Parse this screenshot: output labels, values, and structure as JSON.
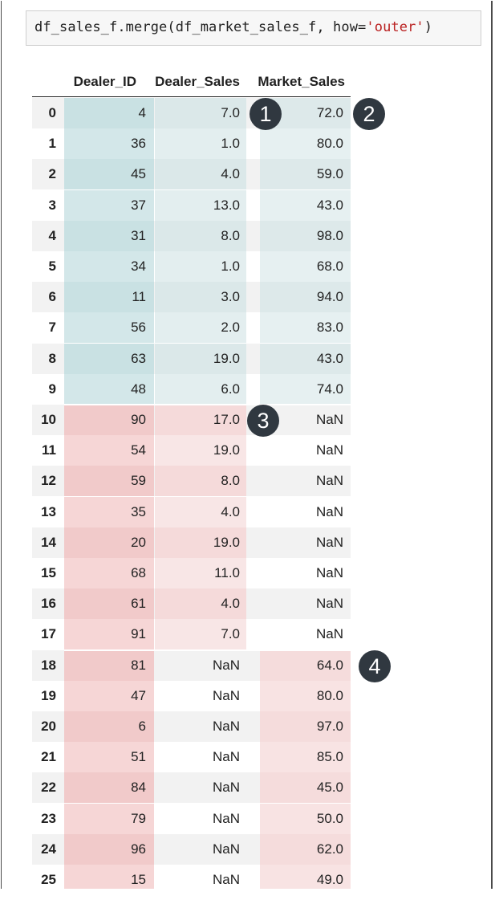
{
  "code": {
    "prefix": "df_sales_f.merge(df_market_sales_f, how=",
    "string": "'outer'",
    "suffix": ")"
  },
  "columns": [
    "Dealer_ID",
    "Dealer_Sales",
    "Market_Sales"
  ],
  "rows": [
    {
      "index": "0",
      "Dealer_ID": "4",
      "Dealer_Sales": "7.0",
      "Market_Sales": "72.0"
    },
    {
      "index": "1",
      "Dealer_ID": "36",
      "Dealer_Sales": "1.0",
      "Market_Sales": "80.0"
    },
    {
      "index": "2",
      "Dealer_ID": "45",
      "Dealer_Sales": "4.0",
      "Market_Sales": "59.0"
    },
    {
      "index": "3",
      "Dealer_ID": "37",
      "Dealer_Sales": "13.0",
      "Market_Sales": "43.0"
    },
    {
      "index": "4",
      "Dealer_ID": "31",
      "Dealer_Sales": "8.0",
      "Market_Sales": "98.0"
    },
    {
      "index": "5",
      "Dealer_ID": "34",
      "Dealer_Sales": "1.0",
      "Market_Sales": "68.0"
    },
    {
      "index": "6",
      "Dealer_ID": "11",
      "Dealer_Sales": "3.0",
      "Market_Sales": "94.0"
    },
    {
      "index": "7",
      "Dealer_ID": "56",
      "Dealer_Sales": "2.0",
      "Market_Sales": "83.0"
    },
    {
      "index": "8",
      "Dealer_ID": "63",
      "Dealer_Sales": "19.0",
      "Market_Sales": "43.0"
    },
    {
      "index": "9",
      "Dealer_ID": "48",
      "Dealer_Sales": "6.0",
      "Market_Sales": "74.0"
    },
    {
      "index": "10",
      "Dealer_ID": "90",
      "Dealer_Sales": "17.0",
      "Market_Sales": "NaN"
    },
    {
      "index": "11",
      "Dealer_ID": "54",
      "Dealer_Sales": "19.0",
      "Market_Sales": "NaN"
    },
    {
      "index": "12",
      "Dealer_ID": "59",
      "Dealer_Sales": "8.0",
      "Market_Sales": "NaN"
    },
    {
      "index": "13",
      "Dealer_ID": "35",
      "Dealer_Sales": "4.0",
      "Market_Sales": "NaN"
    },
    {
      "index": "14",
      "Dealer_ID": "20",
      "Dealer_Sales": "19.0",
      "Market_Sales": "NaN"
    },
    {
      "index": "15",
      "Dealer_ID": "68",
      "Dealer_Sales": "11.0",
      "Market_Sales": "NaN"
    },
    {
      "index": "16",
      "Dealer_ID": "61",
      "Dealer_Sales": "4.0",
      "Market_Sales": "NaN"
    },
    {
      "index": "17",
      "Dealer_ID": "91",
      "Dealer_Sales": "7.0",
      "Market_Sales": "NaN"
    },
    {
      "index": "18",
      "Dealer_ID": "81",
      "Dealer_Sales": "NaN",
      "Market_Sales": "64.0"
    },
    {
      "index": "19",
      "Dealer_ID": "47",
      "Dealer_Sales": "NaN",
      "Market_Sales": "80.0"
    },
    {
      "index": "20",
      "Dealer_ID": "6",
      "Dealer_Sales": "NaN",
      "Market_Sales": "97.0"
    },
    {
      "index": "21",
      "Dealer_ID": "51",
      "Dealer_Sales": "NaN",
      "Market_Sales": "85.0"
    },
    {
      "index": "22",
      "Dealer_ID": "84",
      "Dealer_Sales": "NaN",
      "Market_Sales": "45.0"
    },
    {
      "index": "23",
      "Dealer_ID": "79",
      "Dealer_Sales": "NaN",
      "Market_Sales": "50.0"
    },
    {
      "index": "24",
      "Dealer_ID": "96",
      "Dealer_Sales": "NaN",
      "Market_Sales": "62.0"
    },
    {
      "index": "25",
      "Dealer_ID": "15",
      "Dealer_Sales": "NaN",
      "Market_Sales": "49.0"
    }
  ],
  "badges": [
    "1",
    "2",
    "3",
    "4"
  ],
  "colors": {
    "teal_highlight": "#d3e7e9",
    "teal_highlight_alt": "#c9e1e3",
    "red_highlight": "#f6d6d6",
    "red_highlight_alt": "#f1caca",
    "dealer_teal": "#e3eeef",
    "market_teal": "#e6f0f1",
    "market_red": "#f8e3e3",
    "badge": "#303840"
  }
}
